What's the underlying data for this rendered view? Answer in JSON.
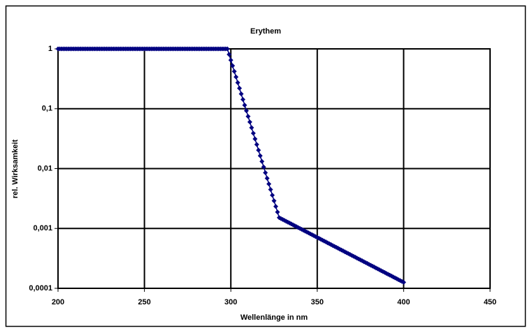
{
  "chart_data": {
    "type": "line",
    "title": "Erythem",
    "x_label": "Wellenlänge in nm",
    "y_label": "rel. Wirksamkeit",
    "x": [
      200,
      201,
      202,
      203,
      204,
      205,
      206,
      207,
      208,
      209,
      210,
      211,
      212,
      213,
      214,
      215,
      216,
      217,
      218,
      219,
      220,
      221,
      222,
      223,
      224,
      225,
      226,
      227,
      228,
      229,
      230,
      231,
      232,
      233,
      234,
      235,
      236,
      237,
      238,
      239,
      240,
      241,
      242,
      243,
      244,
      245,
      246,
      247,
      248,
      249,
      250,
      251,
      252,
      253,
      254,
      255,
      256,
      257,
      258,
      259,
      260,
      261,
      262,
      263,
      264,
      265,
      266,
      267,
      268,
      269,
      270,
      271,
      272,
      273,
      274,
      275,
      276,
      277,
      278,
      279,
      280,
      281,
      282,
      283,
      284,
      285,
      286,
      287,
      288,
      289,
      290,
      291,
      292,
      293,
      294,
      295,
      296,
      297,
      298,
      299,
      300,
      301,
      302,
      303,
      304,
      305,
      306,
      307,
      308,
      309,
      310,
      311,
      312,
      313,
      314,
      315,
      316,
      317,
      318,
      319,
      320,
      321,
      322,
      323,
      324,
      325,
      326,
      327,
      328,
      329,
      330,
      331,
      332,
      333,
      334,
      335,
      336,
      337,
      338,
      339,
      340,
      341,
      342,
      343,
      344,
      345,
      346,
      347,
      348,
      349,
      350,
      351,
      352,
      353,
      354,
      355,
      356,
      357,
      358,
      359,
      360,
      361,
      362,
      363,
      364,
      365,
      366,
      367,
      368,
      369,
      370,
      371,
      372,
      373,
      374,
      375,
      376,
      377,
      378,
      379,
      380,
      381,
      382,
      383,
      384,
      385,
      386,
      387,
      388,
      389,
      390,
      391,
      392,
      393,
      394,
      395,
      396,
      397,
      398,
      399,
      400
    ],
    "values": [
      1,
      1,
      1,
      1,
      1,
      1,
      1,
      1,
      1,
      1,
      1,
      1,
      1,
      1,
      1,
      1,
      1,
      1,
      1,
      1,
      1,
      1,
      1,
      1,
      1,
      1,
      1,
      1,
      1,
      1,
      1,
      1,
      1,
      1,
      1,
      1,
      1,
      1,
      1,
      1,
      1,
      1,
      1,
      1,
      1,
      1,
      1,
      1,
      1,
      1,
      1,
      1,
      1,
      1,
      1,
      1,
      1,
      1,
      1,
      1,
      1,
      1,
      1,
      1,
      1,
      1,
      1,
      1,
      1,
      1,
      1,
      1,
      1,
      1,
      1,
      1,
      1,
      1,
      1,
      1,
      1,
      1,
      1,
      1,
      1,
      1,
      1,
      1,
      1,
      1,
      1,
      1,
      1,
      1,
      1,
      1,
      1,
      1,
      1,
      0.8054,
      0.6486,
      0.5224,
      0.4207,
      0.3388,
      0.2729,
      0.2198,
      0.177,
      0.1426,
      0.1148,
      0.09247,
      0.07447,
      0.05998,
      0.04831,
      0.0389,
      0.03133,
      0.02523,
      0.02032,
      0.01637,
      0.01318,
      0.01062,
      0.008551,
      0.006887,
      0.005546,
      0.004467,
      0.003597,
      0.002897,
      0.002333,
      0.001879,
      0.001514,
      0.001462,
      0.001413,
      0.001365,
      0.001318,
      0.001274,
      0.00123,
      0.001189,
      0.001148,
      0.001109,
      0.001072,
      0.001035,
      0.001,
      0.0009661,
      0.0009333,
      0.0009016,
      0.000871,
      0.0008414,
      0.0008128,
      0.0007852,
      0.0007586,
      0.0007328,
      0.0007079,
      0.0006839,
      0.0006607,
      0.0006383,
      0.0006166,
      0.0005957,
      0.0005754,
      0.0005559,
      0.000537,
      0.0005188,
      0.0005012,
      0.0004842,
      0.0004678,
      0.0004519,
      0.0004365,
      0.0004217,
      0.0004074,
      0.0003936,
      0.0003802,
      0.0003673,
      0.0003548,
      0.0003428,
      0.0003311,
      0.0003199,
      0.000309,
      0.0002985,
      0.0002884,
      0.0002786,
      0.0002692,
      0.00026,
      0.0002512,
      0.0002427,
      0.0002344,
      0.0002265,
      0.0002188,
      0.0002113,
      0.0002042,
      0.0001972,
      0.0001905,
      0.0001841,
      0.0001778,
      0.0001718,
      0.000166,
      0.0001603,
      0.0001549,
      0.0001496,
      0.0001445,
      0.0001396,
      0.0001349,
      0.0001303,
      0.0001259
    ],
    "color": "#000080",
    "marker": "diamond",
    "xlim": [
      200,
      450
    ],
    "xticks": [
      200,
      250,
      300,
      350,
      400,
      450
    ],
    "ylim": [
      0.0001,
      1
    ],
    "yscale": "log",
    "yticks": [
      {
        "value": 0.0001,
        "label": "0,0001"
      },
      {
        "value": 0.001,
        "label": "0,001"
      },
      {
        "value": 0.01,
        "label": "0,01"
      },
      {
        "value": 0.1,
        "label": "0,1"
      },
      1
    ],
    "grid": true
  }
}
